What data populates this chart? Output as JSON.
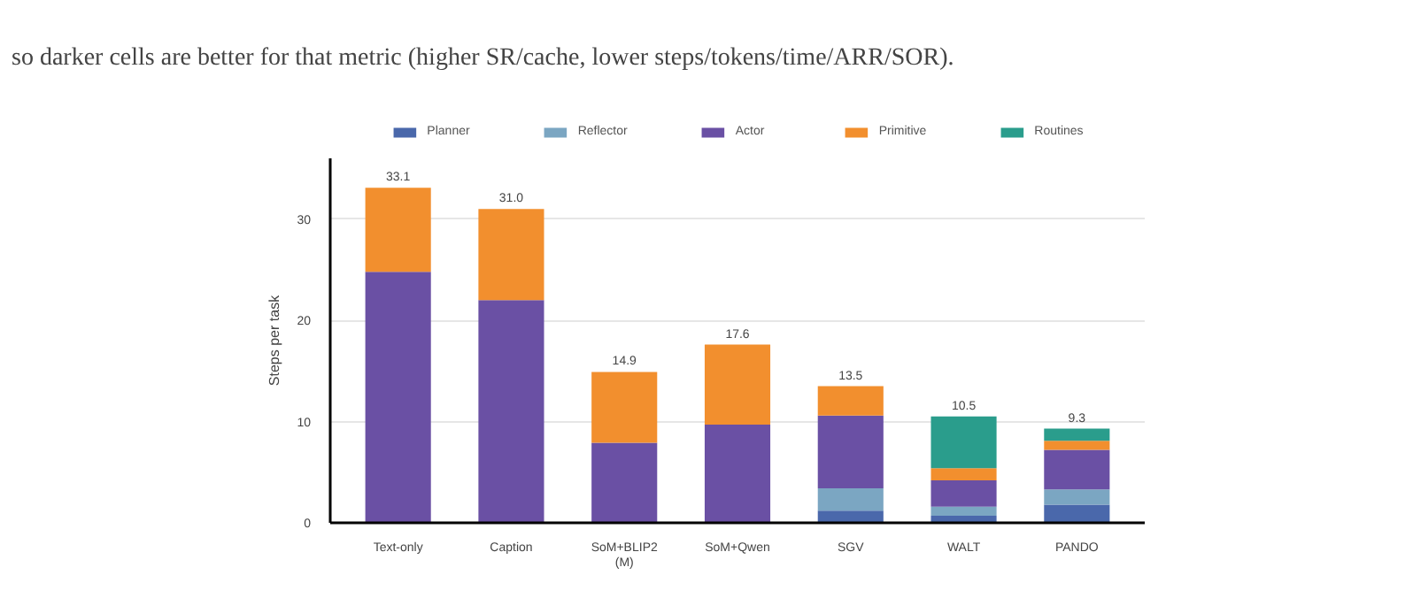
{
  "chart_data": {
    "type": "bar",
    "stacked": true,
    "ylabel": "Steps per task",
    "categories": [
      "Text-only",
      "Caption",
      "SoM+BLIP2\n(M)",
      "SoM+Qwen",
      "SGV",
      "WALT",
      "PANDO"
    ],
    "series": [
      {
        "name": "Planner",
        "color": "#4a68ab",
        "values": [
          0,
          0,
          0,
          0,
          1.2,
          0.7,
          1.8
        ]
      },
      {
        "name": "Reflector",
        "color": "#7ba6c2",
        "values": [
          0,
          0,
          0,
          0,
          2.2,
          0.9,
          1.5
        ]
      },
      {
        "name": "Actor",
        "color": "#6a50a4",
        "values": [
          24.8,
          22.0,
          7.9,
          9.7,
          7.2,
          2.6,
          3.9
        ]
      },
      {
        "name": "Primitive",
        "color": "#f28f2e",
        "values": [
          8.3,
          9.0,
          7.0,
          7.9,
          2.9,
          1.2,
          0.9
        ]
      },
      {
        "name": "Routines",
        "color": "#2a9d8c",
        "values": [
          0,
          0,
          0,
          0,
          0,
          5.1,
          1.2
        ]
      }
    ],
    "totals": [
      "33.1",
      "31.0",
      "14.9",
      "17.6",
      "13.5",
      "10.5",
      "9.3"
    ],
    "ylim": [
      0,
      36
    ],
    "yticks": [
      0,
      10,
      20,
      30
    ],
    "grid": "y",
    "legend": "top",
    "annotations": [
      "so darker cells are better for that metric (higher SR/cache, lower steps/tokens/time/ARR/SOR)."
    ]
  }
}
